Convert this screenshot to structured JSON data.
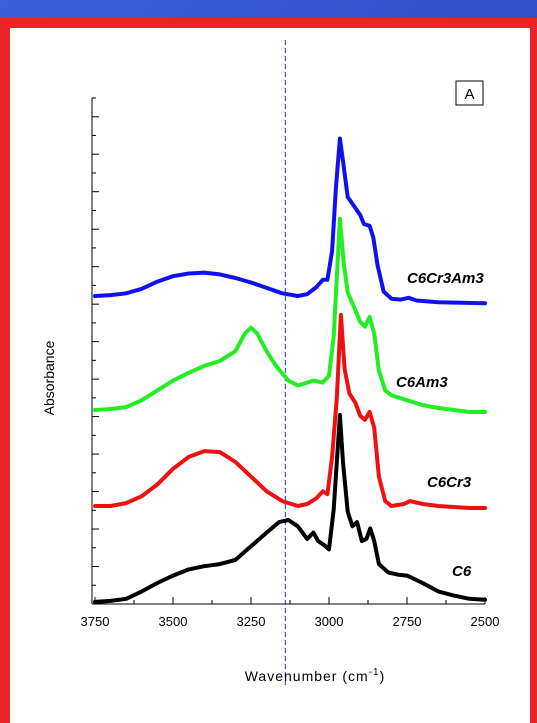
{
  "chart_data": {
    "type": "line",
    "panel_label": "A",
    "xlabel": "Wavenumber (cm",
    "xlabel_sup": "-1",
    "xlabel_end": ")",
    "ylabel": "Absorbance",
    "xlim": [
      3750,
      2500
    ],
    "x_ticks": [
      3750,
      3500,
      3250,
      3000,
      2750,
      2500
    ],
    "x_tick_labels": [
      "3750",
      "3500",
      "3250",
      "3000",
      "2750",
      "2500"
    ],
    "reference_line_x": 3140,
    "reference_line_color": "#2233cc",
    "y_units": "arbitrary (offset)",
    "series": [
      {
        "name": "C6",
        "color": "#000000",
        "points": [
          [
            3750,
            0.02
          ],
          [
            3700,
            0.03
          ],
          [
            3650,
            0.05
          ],
          [
            3600,
            0.12
          ],
          [
            3550,
            0.2
          ],
          [
            3500,
            0.27
          ],
          [
            3450,
            0.33
          ],
          [
            3400,
            0.36
          ],
          [
            3350,
            0.38
          ],
          [
            3300,
            0.42
          ],
          [
            3250,
            0.55
          ],
          [
            3200,
            0.68
          ],
          [
            3160,
            0.78
          ],
          [
            3130,
            0.8
          ],
          [
            3100,
            0.74
          ],
          [
            3070,
            0.62
          ],
          [
            3050,
            0.68
          ],
          [
            3035,
            0.6
          ],
          [
            3015,
            0.56
          ],
          [
            3000,
            0.52
          ],
          [
            2985,
            0.9
          ],
          [
            2965,
            1.8
          ],
          [
            2955,
            1.35
          ],
          [
            2940,
            0.88
          ],
          [
            2925,
            0.74
          ],
          [
            2910,
            0.78
          ],
          [
            2895,
            0.6
          ],
          [
            2880,
            0.62
          ],
          [
            2868,
            0.72
          ],
          [
            2855,
            0.6
          ],
          [
            2840,
            0.38
          ],
          [
            2810,
            0.3
          ],
          [
            2780,
            0.28
          ],
          [
            2750,
            0.27
          ],
          [
            2700,
            0.2
          ],
          [
            2650,
            0.12
          ],
          [
            2600,
            0.08
          ],
          [
            2550,
            0.05
          ],
          [
            2500,
            0.04
          ]
        ]
      },
      {
        "name": "C6Cr3",
        "color": "#ee1111",
        "points": [
          [
            3750,
            0.0
          ],
          [
            3700,
            0.0
          ],
          [
            3650,
            0.03
          ],
          [
            3600,
            0.1
          ],
          [
            3550,
            0.22
          ],
          [
            3500,
            0.38
          ],
          [
            3450,
            0.5
          ],
          [
            3400,
            0.56
          ],
          [
            3350,
            0.55
          ],
          [
            3300,
            0.45
          ],
          [
            3250,
            0.3
          ],
          [
            3200,
            0.15
          ],
          [
            3150,
            0.05
          ],
          [
            3100,
            0.0
          ],
          [
            3070,
            0.02
          ],
          [
            3040,
            0.08
          ],
          [
            3020,
            0.15
          ],
          [
            3005,
            0.12
          ],
          [
            2990,
            0.5
          ],
          [
            2975,
            1.1
          ],
          [
            2962,
            1.95
          ],
          [
            2950,
            1.4
          ],
          [
            2935,
            1.15
          ],
          [
            2915,
            1.05
          ],
          [
            2900,
            0.92
          ],
          [
            2885,
            0.88
          ],
          [
            2870,
            0.96
          ],
          [
            2855,
            0.8
          ],
          [
            2840,
            0.3
          ],
          [
            2820,
            0.05
          ],
          [
            2800,
            0.0
          ],
          [
            2760,
            0.02
          ],
          [
            2740,
            0.05
          ],
          [
            2700,
            0.02
          ],
          [
            2650,
            0.0
          ],
          [
            2550,
            -0.02
          ],
          [
            2500,
            -0.02
          ]
        ]
      },
      {
        "name": "C6Am3",
        "color": "#22ee22",
        "points": [
          [
            3750,
            0.0
          ],
          [
            3700,
            0.01
          ],
          [
            3650,
            0.03
          ],
          [
            3600,
            0.1
          ],
          [
            3550,
            0.2
          ],
          [
            3500,
            0.3
          ],
          [
            3450,
            0.38
          ],
          [
            3400,
            0.45
          ],
          [
            3350,
            0.5
          ],
          [
            3300,
            0.6
          ],
          [
            3270,
            0.78
          ],
          [
            3250,
            0.84
          ],
          [
            3230,
            0.78
          ],
          [
            3200,
            0.6
          ],
          [
            3170,
            0.45
          ],
          [
            3130,
            0.3
          ],
          [
            3100,
            0.25
          ],
          [
            3070,
            0.28
          ],
          [
            3050,
            0.3
          ],
          [
            3020,
            0.28
          ],
          [
            3000,
            0.35
          ],
          [
            2985,
            0.75
          ],
          [
            2965,
            1.95
          ],
          [
            2953,
            1.5
          ],
          [
            2940,
            1.2
          ],
          [
            2920,
            1.05
          ],
          [
            2900,
            0.9
          ],
          [
            2885,
            0.85
          ],
          [
            2870,
            0.95
          ],
          [
            2855,
            0.78
          ],
          [
            2840,
            0.4
          ],
          [
            2820,
            0.2
          ],
          [
            2800,
            0.15
          ],
          [
            2750,
            0.1
          ],
          [
            2700,
            0.05
          ],
          [
            2650,
            0.02
          ],
          [
            2550,
            -0.02
          ],
          [
            2500,
            -0.02
          ]
        ]
      },
      {
        "name": "C6Cr3Am3",
        "color": "#1111ee",
        "points": [
          [
            3750,
            0.0
          ],
          [
            3700,
            0.01
          ],
          [
            3650,
            0.03
          ],
          [
            3600,
            0.08
          ],
          [
            3550,
            0.16
          ],
          [
            3500,
            0.22
          ],
          [
            3450,
            0.25
          ],
          [
            3400,
            0.26
          ],
          [
            3350,
            0.24
          ],
          [
            3300,
            0.2
          ],
          [
            3250,
            0.15
          ],
          [
            3200,
            0.09
          ],
          [
            3150,
            0.03
          ],
          [
            3100,
            0.0
          ],
          [
            3070,
            0.02
          ],
          [
            3040,
            0.1
          ],
          [
            3020,
            0.18
          ],
          [
            3005,
            0.18
          ],
          [
            2990,
            0.5
          ],
          [
            2978,
            1.2
          ],
          [
            2965,
            1.75
          ],
          [
            2955,
            1.5
          ],
          [
            2940,
            1.1
          ],
          [
            2920,
            1.0
          ],
          [
            2900,
            0.9
          ],
          [
            2888,
            0.8
          ],
          [
            2870,
            0.78
          ],
          [
            2858,
            0.65
          ],
          [
            2845,
            0.35
          ],
          [
            2825,
            0.05
          ],
          [
            2800,
            -0.03
          ],
          [
            2770,
            -0.04
          ],
          [
            2745,
            -0.02
          ],
          [
            2720,
            -0.05
          ],
          [
            2650,
            -0.07
          ],
          [
            2500,
            -0.08
          ]
        ]
      }
    ]
  }
}
